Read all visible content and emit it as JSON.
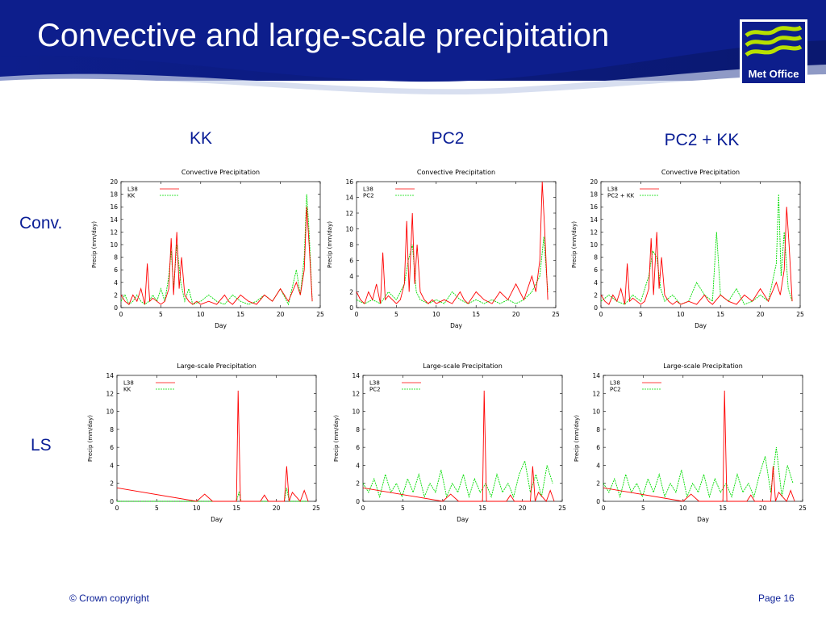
{
  "slide": {
    "title": "Convective and large-scale precipitation",
    "logo_text": "Met Office",
    "columns": [
      "KK",
      "PC2",
      "PC2 + KK"
    ],
    "rows": [
      "Conv.",
      "LS"
    ],
    "footer_left": "© Crown copyright",
    "footer_right": "Page 16"
  },
  "colors": {
    "banner": "#0d1e8c",
    "heading": "#0a1e96",
    "red_series": "#ff0000",
    "green_series": "#00dd00",
    "logo_green": "#b8e000"
  },
  "chart_data": [
    {
      "type": "line",
      "title": "Convective Precipitation",
      "xlabel": "Day",
      "ylabel": "Precip (mm/day)",
      "xlim": [
        0,
        25
      ],
      "ylim": [
        0,
        20
      ],
      "xticks": [
        0,
        5,
        10,
        15,
        20,
        25
      ],
      "yticks": [
        0,
        2,
        4,
        6,
        8,
        10,
        12,
        14,
        16,
        18,
        20
      ],
      "legend": "top-left",
      "series": [
        {
          "name": "L38",
          "color": "#ff0000",
          "x": [
            0,
            0.5,
            1,
            1.5,
            2,
            2.5,
            3,
            3.3,
            3.6,
            4,
            4.5,
            5,
            5.5,
            6,
            6.3,
            6.6,
            7,
            7.3,
            7.6,
            8,
            8.5,
            9,
            9.5,
            10,
            11,
            12,
            13,
            13.5,
            14,
            15,
            16,
            17,
            18,
            19,
            20,
            21,
            22,
            22.5,
            23,
            23.3,
            23.6,
            24
          ],
          "y": [
            2,
            1,
            0.5,
            2,
            1,
            3,
            0.5,
            7,
            1,
            1.5,
            1,
            0.5,
            1,
            3,
            11,
            2,
            12,
            3,
            8,
            2,
            1,
            0.5,
            1,
            0.5,
            1,
            0.5,
            2,
            1,
            0.5,
            2,
            1,
            0.5,
            2,
            1,
            3,
            1,
            4,
            2,
            6,
            16,
            10,
            1
          ]
        },
        {
          "name": "KK",
          "color": "#00dd00",
          "x": [
            0,
            0.5,
            1,
            1.5,
            2,
            2.5,
            3,
            3.5,
            4,
            4.5,
            5,
            5.5,
            6,
            6.3,
            6.6,
            7,
            7.5,
            8,
            8.5,
            9,
            10,
            11,
            12,
            13,
            14,
            15,
            16,
            17,
            18,
            19,
            20,
            21,
            22,
            22.5,
            23,
            23.3,
            23.6,
            24
          ],
          "y": [
            1,
            2,
            0.5,
            1,
            2,
            1,
            0.5,
            1,
            2,
            1,
            3,
            1,
            5,
            9,
            3,
            10,
            4,
            1,
            3,
            0.5,
            1,
            2,
            1,
            0.5,
            2,
            1,
            0.5,
            1,
            2,
            1,
            3,
            0.5,
            6,
            2,
            8,
            18,
            12,
            1
          ]
        }
      ]
    },
    {
      "type": "line",
      "title": "Convective Precipitation",
      "xlabel": "Day",
      "ylabel": "Precip (mm/day)",
      "xlim": [
        0,
        25
      ],
      "ylim": [
        0,
        16
      ],
      "xticks": [
        0,
        5,
        10,
        15,
        20,
        25
      ],
      "yticks": [
        0,
        2,
        4,
        6,
        8,
        10,
        12,
        14,
        16
      ],
      "legend": "top-left",
      "series": [
        {
          "name": "L38",
          "color": "#ff0000",
          "x": [
            0,
            0.5,
            1,
            1.5,
            2,
            2.5,
            3,
            3.3,
            3.6,
            4,
            4.5,
            5,
            5.5,
            6,
            6.3,
            6.6,
            7,
            7.3,
            7.6,
            8,
            8.5,
            9,
            9.5,
            10,
            11,
            12,
            13,
            13.5,
            14,
            15,
            16,
            17,
            18,
            19,
            20,
            21,
            22,
            22.5,
            23,
            23.3,
            23.6,
            24
          ],
          "y": [
            2,
            1,
            0.5,
            2,
            1,
            3,
            0.5,
            7,
            1,
            1.5,
            1,
            0.5,
            1,
            3,
            11,
            2,
            12,
            3,
            8,
            2,
            1,
            0.5,
            1,
            0.5,
            1,
            0.5,
            2,
            1,
            0.5,
            2,
            1,
            0.5,
            2,
            1,
            3,
            1,
            4,
            2,
            6,
            16,
            10,
            1
          ]
        },
        {
          "name": "PC2",
          "color": "#00dd00",
          "x": [
            0,
            1,
            2,
            3,
            4,
            5,
            6,
            6.5,
            7,
            7.5,
            8,
            9,
            10,
            11,
            12,
            13,
            14,
            15,
            16,
            17,
            18,
            19,
            20,
            21,
            22,
            23,
            23.5,
            24
          ],
          "y": [
            1,
            0.5,
            1,
            0.5,
            2,
            1,
            3,
            6,
            8,
            2,
            1,
            0.5,
            1,
            0.5,
            2,
            1,
            0.5,
            1,
            0.5,
            1,
            0.5,
            1,
            0.5,
            1,
            2,
            4,
            9,
            2
          ]
        }
      ]
    },
    {
      "type": "line",
      "title": "Convective Precipitation",
      "xlabel": "Day",
      "ylabel": "Precip (mm/day)",
      "xlim": [
        0,
        25
      ],
      "ylim": [
        0,
        20
      ],
      "xticks": [
        0,
        5,
        10,
        15,
        20,
        25
      ],
      "yticks": [
        0,
        2,
        4,
        6,
        8,
        10,
        12,
        14,
        16,
        18,
        20
      ],
      "legend": "top-left",
      "series": [
        {
          "name": "L38",
          "color": "#ff0000",
          "x": [
            0,
            0.5,
            1,
            1.5,
            2,
            2.5,
            3,
            3.3,
            3.6,
            4,
            4.5,
            5,
            5.5,
            6,
            6.3,
            6.6,
            7,
            7.3,
            7.6,
            8,
            8.5,
            9,
            9.5,
            10,
            11,
            12,
            13,
            13.5,
            14,
            15,
            16,
            17,
            18,
            19,
            20,
            21,
            22,
            22.5,
            23,
            23.3,
            23.6,
            24
          ],
          "y": [
            2,
            1,
            0.5,
            2,
            1,
            3,
            0.5,
            7,
            1,
            1.5,
            1,
            0.5,
            1,
            3,
            11,
            2,
            12,
            3,
            8,
            2,
            1,
            0.5,
            1,
            0.5,
            1,
            0.5,
            2,
            1,
            0.5,
            2,
            1,
            0.5,
            2,
            1,
            3,
            1,
            4,
            2,
            6,
            16,
            10,
            1
          ]
        },
        {
          "name": "PC2 + KK",
          "color": "#00dd00",
          "x": [
            0,
            1,
            2,
            3,
            4,
            5,
            6,
            6.5,
            7,
            7.5,
            8,
            9,
            10,
            11,
            12,
            13,
            14,
            14.5,
            15,
            16,
            17,
            18,
            19,
            20,
            21,
            22,
            22.3,
            22.6,
            23,
            23.5,
            24
          ],
          "y": [
            1,
            2,
            1,
            0.5,
            2,
            1,
            5,
            9,
            8,
            3,
            1,
            2,
            0.5,
            1,
            4,
            2,
            1,
            12,
            2,
            1,
            3,
            0.5,
            1,
            2,
            1,
            7,
            18,
            5,
            12,
            3,
            1
          ]
        }
      ]
    },
    {
      "type": "line",
      "title": "Large-scale Precipitation",
      "xlabel": "Day",
      "ylabel": "Precip (mm/day)",
      "xlim": [
        0,
        25
      ],
      "ylim": [
        0,
        14
      ],
      "xticks": [
        0,
        5,
        10,
        15,
        20,
        25
      ],
      "yticks": [
        0,
        2,
        4,
        6,
        8,
        10,
        12,
        14
      ],
      "legend": "top-left",
      "series": [
        {
          "name": "L38",
          "color": "#ff0000",
          "x": [
            0,
            10,
            11,
            12,
            15,
            15.2,
            15.5,
            16,
            18,
            18.5,
            19,
            21,
            21.3,
            21.6,
            22,
            23,
            23.5,
            24
          ],
          "y": [
            1.5,
            0,
            0.8,
            0,
            0,
            12.3,
            0,
            0,
            0,
            0.7,
            0,
            0,
            3.9,
            0,
            1,
            0,
            1.2,
            0
          ]
        },
        {
          "name": "KK",
          "color": "#00dd00",
          "x": [
            0,
            5,
            10,
            15,
            15.3,
            15.6,
            20,
            21,
            21.3,
            21.6,
            24
          ],
          "y": [
            0,
            0,
            0,
            0,
            1,
            0,
            0,
            0,
            1.5,
            0,
            0
          ]
        }
      ]
    },
    {
      "type": "line",
      "title": "Large-scale Precipitation",
      "xlabel": "Day",
      "ylabel": "Precip (mm/day)",
      "xlim": [
        0,
        25
      ],
      "ylim": [
        0,
        14
      ],
      "xticks": [
        0,
        5,
        10,
        15,
        20,
        25
      ],
      "yticks": [
        0,
        2,
        4,
        6,
        8,
        10,
        12,
        14
      ],
      "legend": "top-left",
      "series": [
        {
          "name": "L38",
          "color": "#ff0000",
          "x": [
            0,
            10,
            11,
            12,
            15,
            15.2,
            15.5,
            16,
            18,
            18.5,
            19,
            21,
            21.3,
            21.6,
            22,
            23,
            23.5,
            24
          ],
          "y": [
            1.5,
            0,
            0.8,
            0,
            0,
            12.3,
            0,
            0,
            0,
            0.7,
            0,
            0,
            3.9,
            0,
            1,
            0,
            1.2,
            0
          ]
        },
        {
          "name": "PC2",
          "color": "#00dd00",
          "x": [
            0,
            0.7,
            1.4,
            2.1,
            2.8,
            3.5,
            4.2,
            4.9,
            5.6,
            6.3,
            7,
            7.7,
            8.4,
            9.1,
            9.8,
            10.5,
            11.2,
            11.9,
            12.6,
            13.3,
            14,
            14.7,
            15.4,
            16.1,
            16.8,
            17.5,
            18.2,
            18.9,
            19.6,
            20.3,
            21,
            21.7,
            22.4,
            23.1,
            23.8
          ],
          "y": [
            2,
            1,
            2.5,
            0.5,
            3,
            1,
            2,
            0.5,
            2.5,
            1,
            3,
            0.5,
            2,
            1,
            3.5,
            0.5,
            2,
            1,
            3,
            0.5,
            2.5,
            1,
            2,
            0.5,
            3,
            1,
            2,
            0.5,
            3,
            4.5,
            1,
            3,
            0.5,
            4,
            2
          ]
        }
      ]
    },
    {
      "type": "line",
      "title": "Large-scale Precipitation",
      "xlabel": "Day",
      "ylabel": "Precip (mm/day)",
      "xlim": [
        0,
        25
      ],
      "ylim": [
        0,
        14
      ],
      "xticks": [
        0,
        5,
        10,
        15,
        20,
        25
      ],
      "yticks": [
        0,
        2,
        4,
        6,
        8,
        10,
        12,
        14
      ],
      "legend": "top-left",
      "series": [
        {
          "name": "L38",
          "color": "#ff0000",
          "x": [
            0,
            10,
            11,
            12,
            15,
            15.2,
            15.5,
            16,
            18,
            18.5,
            19,
            21,
            21.3,
            21.6,
            22,
            23,
            23.5,
            24
          ],
          "y": [
            1.5,
            0,
            0.8,
            0,
            0,
            12.3,
            0,
            0,
            0,
            0.7,
            0,
            0,
            3.9,
            0,
            1,
            0,
            1.2,
            0
          ]
        },
        {
          "name": "PC2",
          "color": "#00dd00",
          "x": [
            0,
            0.7,
            1.4,
            2.1,
            2.8,
            3.5,
            4.2,
            4.9,
            5.6,
            6.3,
            7,
            7.7,
            8.4,
            9.1,
            9.8,
            10.5,
            11.2,
            11.9,
            12.6,
            13.3,
            14,
            14.7,
            15.4,
            16.1,
            16.8,
            17.5,
            18.2,
            18.9,
            19.6,
            20.3,
            21,
            21.7,
            22.4,
            23.1,
            23.8
          ],
          "y": [
            2,
            1,
            2.5,
            0.5,
            3,
            1,
            2,
            0.5,
            2.5,
            1,
            3,
            0.5,
            2,
            1,
            3.5,
            0.5,
            2,
            1,
            3,
            0.5,
            2.5,
            1,
            2,
            0.5,
            3,
            1,
            2,
            0.5,
            3,
            5,
            1,
            6,
            0.5,
            4,
            2
          ]
        }
      ]
    }
  ]
}
